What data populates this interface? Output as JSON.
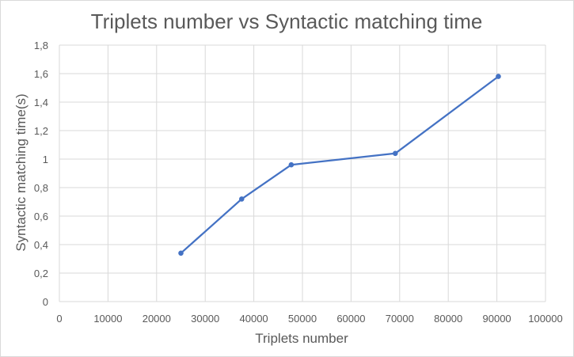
{
  "chart_data": {
    "type": "line",
    "title": "Triplets number vs Syntactic matching time",
    "xlabel": "Triplets number",
    "ylabel": "Syntactic matching time(s)",
    "xlim": [
      0,
      100000
    ],
    "ylim": [
      0,
      1.8
    ],
    "x_ticks": [
      "0",
      "10000",
      "20000",
      "30000",
      "40000",
      "50000",
      "60000",
      "70000",
      "80000",
      "90000",
      "100000"
    ],
    "y_ticks": [
      "0",
      "0,2",
      "0,4",
      "0,6",
      "0,8",
      "1",
      "1,2",
      "1,4",
      "1,6",
      "1,8"
    ],
    "grid": true,
    "legend": "none",
    "series": [
      {
        "x": [
          25000,
          37500,
          47700,
          69100,
          90300
        ],
        "y": [
          0.34,
          0.72,
          0.96,
          1.04,
          1.58
        ],
        "color": "#4472c4"
      }
    ]
  }
}
